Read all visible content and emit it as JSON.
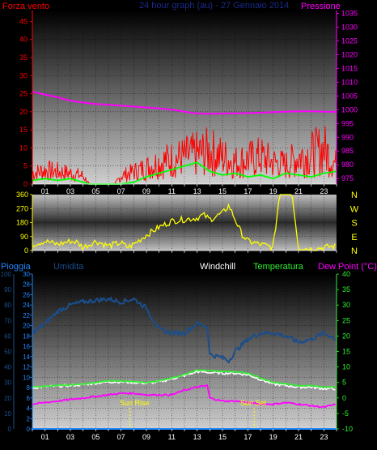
{
  "top": {
    "wind_label": "Forza vento",
    "title": "24 hour graph (au) - 27 Gennaio 2014",
    "pressure_label": "Pressione",
    "left_ticks": [
      "0",
      "5",
      "10",
      "15",
      "20",
      "25",
      "30",
      "35",
      "40",
      "45"
    ],
    "right_ticks": [
      "975",
      "980",
      "985",
      "990",
      "995",
      "1000",
      "1005",
      "1010",
      "1015",
      "1020",
      "1025",
      "1030",
      "1035"
    ]
  },
  "middle": {
    "left_ticks": [
      "0",
      "90",
      "180",
      "270",
      "360"
    ],
    "compass": [
      "N",
      "W",
      "S",
      "E",
      "N"
    ]
  },
  "bottom": {
    "rain_label": "Pioggia",
    "humidity_label": "Umidita",
    "windchill_label": "Windchill",
    "temperature_label": "Temperatura",
    "dewpoint_label": "Dew Point (°C)",
    "rain_ticks": [
      "0",
      "2",
      "4",
      "6",
      "8",
      "10",
      "12",
      "14",
      "16",
      "18",
      "20",
      "22",
      "24",
      "26",
      "28",
      "30"
    ],
    "humidity_ticks": [
      "0",
      "10",
      "20",
      "30",
      "40",
      "50",
      "60",
      "70",
      "80",
      "90",
      "100"
    ],
    "temp_ticks": [
      "-10",
      "-5",
      "0",
      "5",
      "10",
      "15",
      "20",
      "25",
      "30",
      "35",
      "40"
    ],
    "sunrise_label": "Sun Rise",
    "sunset_label": "Sun Set"
  },
  "hour_labels": [
    "01",
    "03",
    "05",
    "07",
    "09",
    "11",
    "13",
    "15",
    "17",
    "19",
    "21",
    "23"
  ],
  "colors": {
    "wind": "#ff0000",
    "gust": "#00ff00",
    "pressure": "#ff00ff",
    "direction": "#ffff00",
    "humidity": "#1a4e8c",
    "temperature": "#33ee33",
    "dewpoint": "#ff00ff",
    "windchill": "#ffffff",
    "rain": "#2288ff"
  },
  "chart_data": [
    {
      "type": "line",
      "title": "24 hour graph (au) - 27 Gennaio 2014",
      "x_unit": "hour",
      "xlim": [
        0,
        24
      ],
      "left_axis": {
        "label": "Forza vento",
        "ylim": [
          0,
          48
        ]
      },
      "right_axis": {
        "label": "Pressione",
        "ylim": [
          973,
          1036
        ]
      },
      "series": [
        {
          "name": "Pressione",
          "axis": "right",
          "x": [
            0,
            1,
            2,
            3,
            4,
            5,
            6,
            7,
            8,
            9,
            10,
            11,
            12,
            13,
            14,
            15,
            16,
            17,
            18,
            19,
            20,
            21,
            22,
            23,
            24
          ],
          "values": [
            1006.5,
            1005.5,
            1004.5,
            1003.3,
            1002.6,
            1002.1,
            1001.8,
            1001.5,
            1001.1,
            1000.8,
            1000.5,
            1000.0,
            999.3,
            998.6,
            998.5,
            998.6,
            998.7,
            998.8,
            998.9,
            999.1,
            999.3,
            999.4,
            999.4,
            999.3,
            999.2
          ]
        },
        {
          "name": "",
          "axis": "left",
          "x": [
            0,
            1,
            2,
            3,
            4,
            4.5,
            6.5,
            7,
            8,
            9,
            10,
            11,
            12,
            13,
            14,
            15,
            16,
            17,
            18,
            19,
            20,
            21,
            22,
            23,
            24
          ],
          "values": [
            4,
            5,
            4.5,
            4,
            3,
            0,
            0,
            3,
            4.5,
            6,
            8,
            9,
            10,
            11,
            12,
            10,
            8,
            9,
            10,
            8,
            7,
            10,
            11,
            13,
            7
          ]
        },
        {
          "name": "",
          "axis": "left",
          "x": [
            0,
            1,
            2,
            3,
            4,
            4.5,
            7,
            8,
            9,
            10,
            11,
            12,
            13,
            14,
            15,
            16,
            17,
            18,
            19,
            20,
            21,
            22,
            23,
            24
          ],
          "values": [
            1,
            1.5,
            1,
            1.5,
            0.5,
            0,
            0,
            0.5,
            2,
            3,
            4,
            5,
            6,
            3.5,
            2.5,
            3,
            2,
            2.5,
            1.5,
            3,
            2.5,
            2,
            3,
            3.5
          ]
        }
      ]
    },
    {
      "type": "line",
      "x_unit": "hour",
      "xlim": [
        0,
        24
      ],
      "ylim": [
        0,
        360
      ],
      "series": [
        {
          "name": "",
          "step": true,
          "x": [
            0,
            1,
            1.5,
            2,
            3,
            3.5,
            4,
            5,
            6,
            7,
            7.5,
            8,
            9,
            10,
            11,
            12,
            13,
            13.5,
            14,
            15,
            15.5,
            16,
            16.5,
            17,
            18,
            19,
            19.5,
            20.5,
            21,
            22,
            23,
            24
          ],
          "values": [
            40,
            60,
            50,
            40,
            60,
            55,
            20,
            60,
            30,
            50,
            20,
            40,
            100,
            150,
            190,
            200,
            210,
            230,
            200,
            240,
            290,
            200,
            110,
            60,
            40,
            20,
            360,
            360,
            20,
            10,
            20,
            30
          ]
        }
      ]
    },
    {
      "type": "line",
      "x_unit": "hour",
      "xlim": [
        0,
        24
      ],
      "left_axis_rain": {
        "label": "Pioggia",
        "ylim": [
          0,
          30
        ]
      },
      "left_axis_humidity": {
        "label": "Umidita",
        "ylim": [
          0,
          100
        ]
      },
      "right_axis": {
        "label": "Dew Point (°C)",
        "ylim": [
          -10,
          40
        ]
      },
      "annotations": [
        {
          "text": "Sun Rise",
          "x": 7.7
        },
        {
          "text": "Sun Set",
          "x": 17.5
        }
      ],
      "series": [
        {
          "name": "Umidita",
          "axis": "humidity",
          "x": [
            0,
            1,
            2,
            3,
            4,
            5,
            6,
            7,
            8,
            9,
            10,
            11,
            12,
            13,
            13.8,
            14,
            15,
            15.5,
            16,
            17,
            18,
            19,
            20,
            21,
            22,
            23,
            24
          ],
          "values": [
            62,
            68,
            76,
            80,
            82,
            83,
            84,
            82,
            84,
            78,
            64,
            62,
            62,
            68,
            66,
            48,
            46,
            44,
            50,
            58,
            62,
            62,
            60,
            56,
            58,
            62,
            58
          ]
        },
        {
          "name": "Temperatura",
          "axis": "temp",
          "x": [
            0,
            1,
            2,
            3,
            4,
            5,
            6,
            7,
            8,
            9,
            10,
            11,
            12,
            13,
            14,
            15,
            16,
            17,
            18,
            19,
            20,
            21,
            22,
            23,
            24
          ],
          "values": [
            3.5,
            3.8,
            4.0,
            4.2,
            4.5,
            5.0,
            5.5,
            5.5,
            5.2,
            5.0,
            5.5,
            6.5,
            7.5,
            9.0,
            8.8,
            8.5,
            8.5,
            8.0,
            6.5,
            5.0,
            4.5,
            4.0,
            4.0,
            3.5,
            3.5
          ]
        },
        {
          "name": "Windchill",
          "axis": "temp",
          "x": [
            0,
            1,
            2,
            3,
            4,
            5,
            6,
            7,
            8,
            9,
            10,
            11,
            12,
            13,
            14,
            15,
            16,
            17,
            18,
            19,
            20,
            21,
            22,
            23,
            24
          ],
          "values": [
            3.3,
            3.6,
            3.8,
            4.0,
            4.3,
            4.8,
            5.2,
            5.2,
            5.0,
            4.8,
            5.2,
            6.2,
            7.2,
            8.5,
            8.2,
            8.0,
            8.0,
            7.5,
            6.0,
            4.5,
            4.0,
            3.5,
            3.5,
            3.0,
            3.0
          ]
        },
        {
          "name": "Dew Point",
          "axis": "temp",
          "x": [
            0,
            1,
            2,
            3,
            4,
            5,
            6,
            7,
            8,
            9,
            10,
            11,
            12,
            13,
            13.8,
            14,
            15,
            16,
            17,
            18,
            19,
            20,
            21,
            22,
            23,
            24
          ],
          "values": [
            -2.0,
            -1.5,
            -1.0,
            -0.5,
            0.0,
            0.5,
            1.0,
            1.5,
            1.5,
            1.0,
            1.0,
            1.0,
            2.5,
            3.5,
            4.0,
            0.0,
            -1.0,
            -1.0,
            -1.5,
            -2.0,
            -2.0,
            -1.5,
            -2.0,
            -2.5,
            -3.0,
            -2.0
          ]
        },
        {
          "name": "Pioggia",
          "axis": "rain",
          "x": [
            0,
            24
          ],
          "values": [
            0,
            0
          ]
        }
      ]
    }
  ]
}
